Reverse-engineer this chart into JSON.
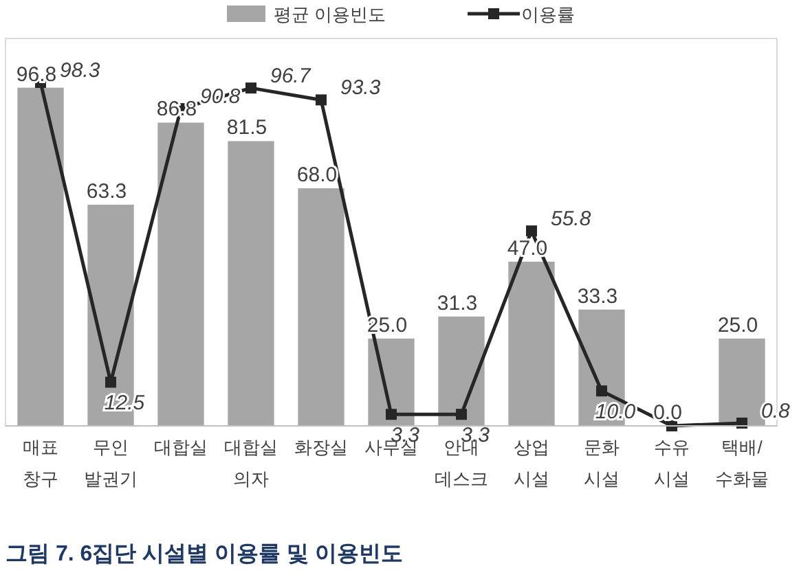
{
  "chart_data": {
    "type": "bar",
    "title": "그림 7. 6집단 시설별 이용률 및 이용빈도",
    "categories": [
      "매표\n창구",
      "무인\n발권기",
      "대합실",
      "대합실\n의자",
      "화장실",
      "사무실",
      "안내\n데스크",
      "상업\n시설",
      "문화\n시설",
      "수유\n시설",
      "택배/\n수화물"
    ],
    "series": [
      {
        "name": "평균 이용빈도",
        "color": "#a6a6a6",
        "values": [
          96.8,
          63.3,
          86.8,
          81.5,
          68.0,
          25.0,
          31.3,
          47.0,
          33.3,
          0.0,
          25.0
        ],
        "value_labels": [
          "96.8",
          "63.3",
          "86.8",
          "81.5",
          "68.0",
          "25.0",
          "31.3",
          "47.0",
          "33.3",
          "0.0",
          "25.0"
        ]
      },
      {
        "name": "이용률",
        "type": "line",
        "color": "#262626",
        "marker": "square",
        "values": [
          98.3,
          12.5,
          90.8,
          96.7,
          93.3,
          3.3,
          3.3,
          55.8,
          10.0,
          0.0,
          0.8
        ],
        "value_labels": [
          "98.3",
          "12.5",
          "90.8",
          "96.7",
          "93.3",
          "3.3",
          "3.3",
          "55.8",
          "10.0",
          null,
          "0.8"
        ]
      }
    ],
    "data_labels": true,
    "legend": "top",
    "grid": false
  }
}
